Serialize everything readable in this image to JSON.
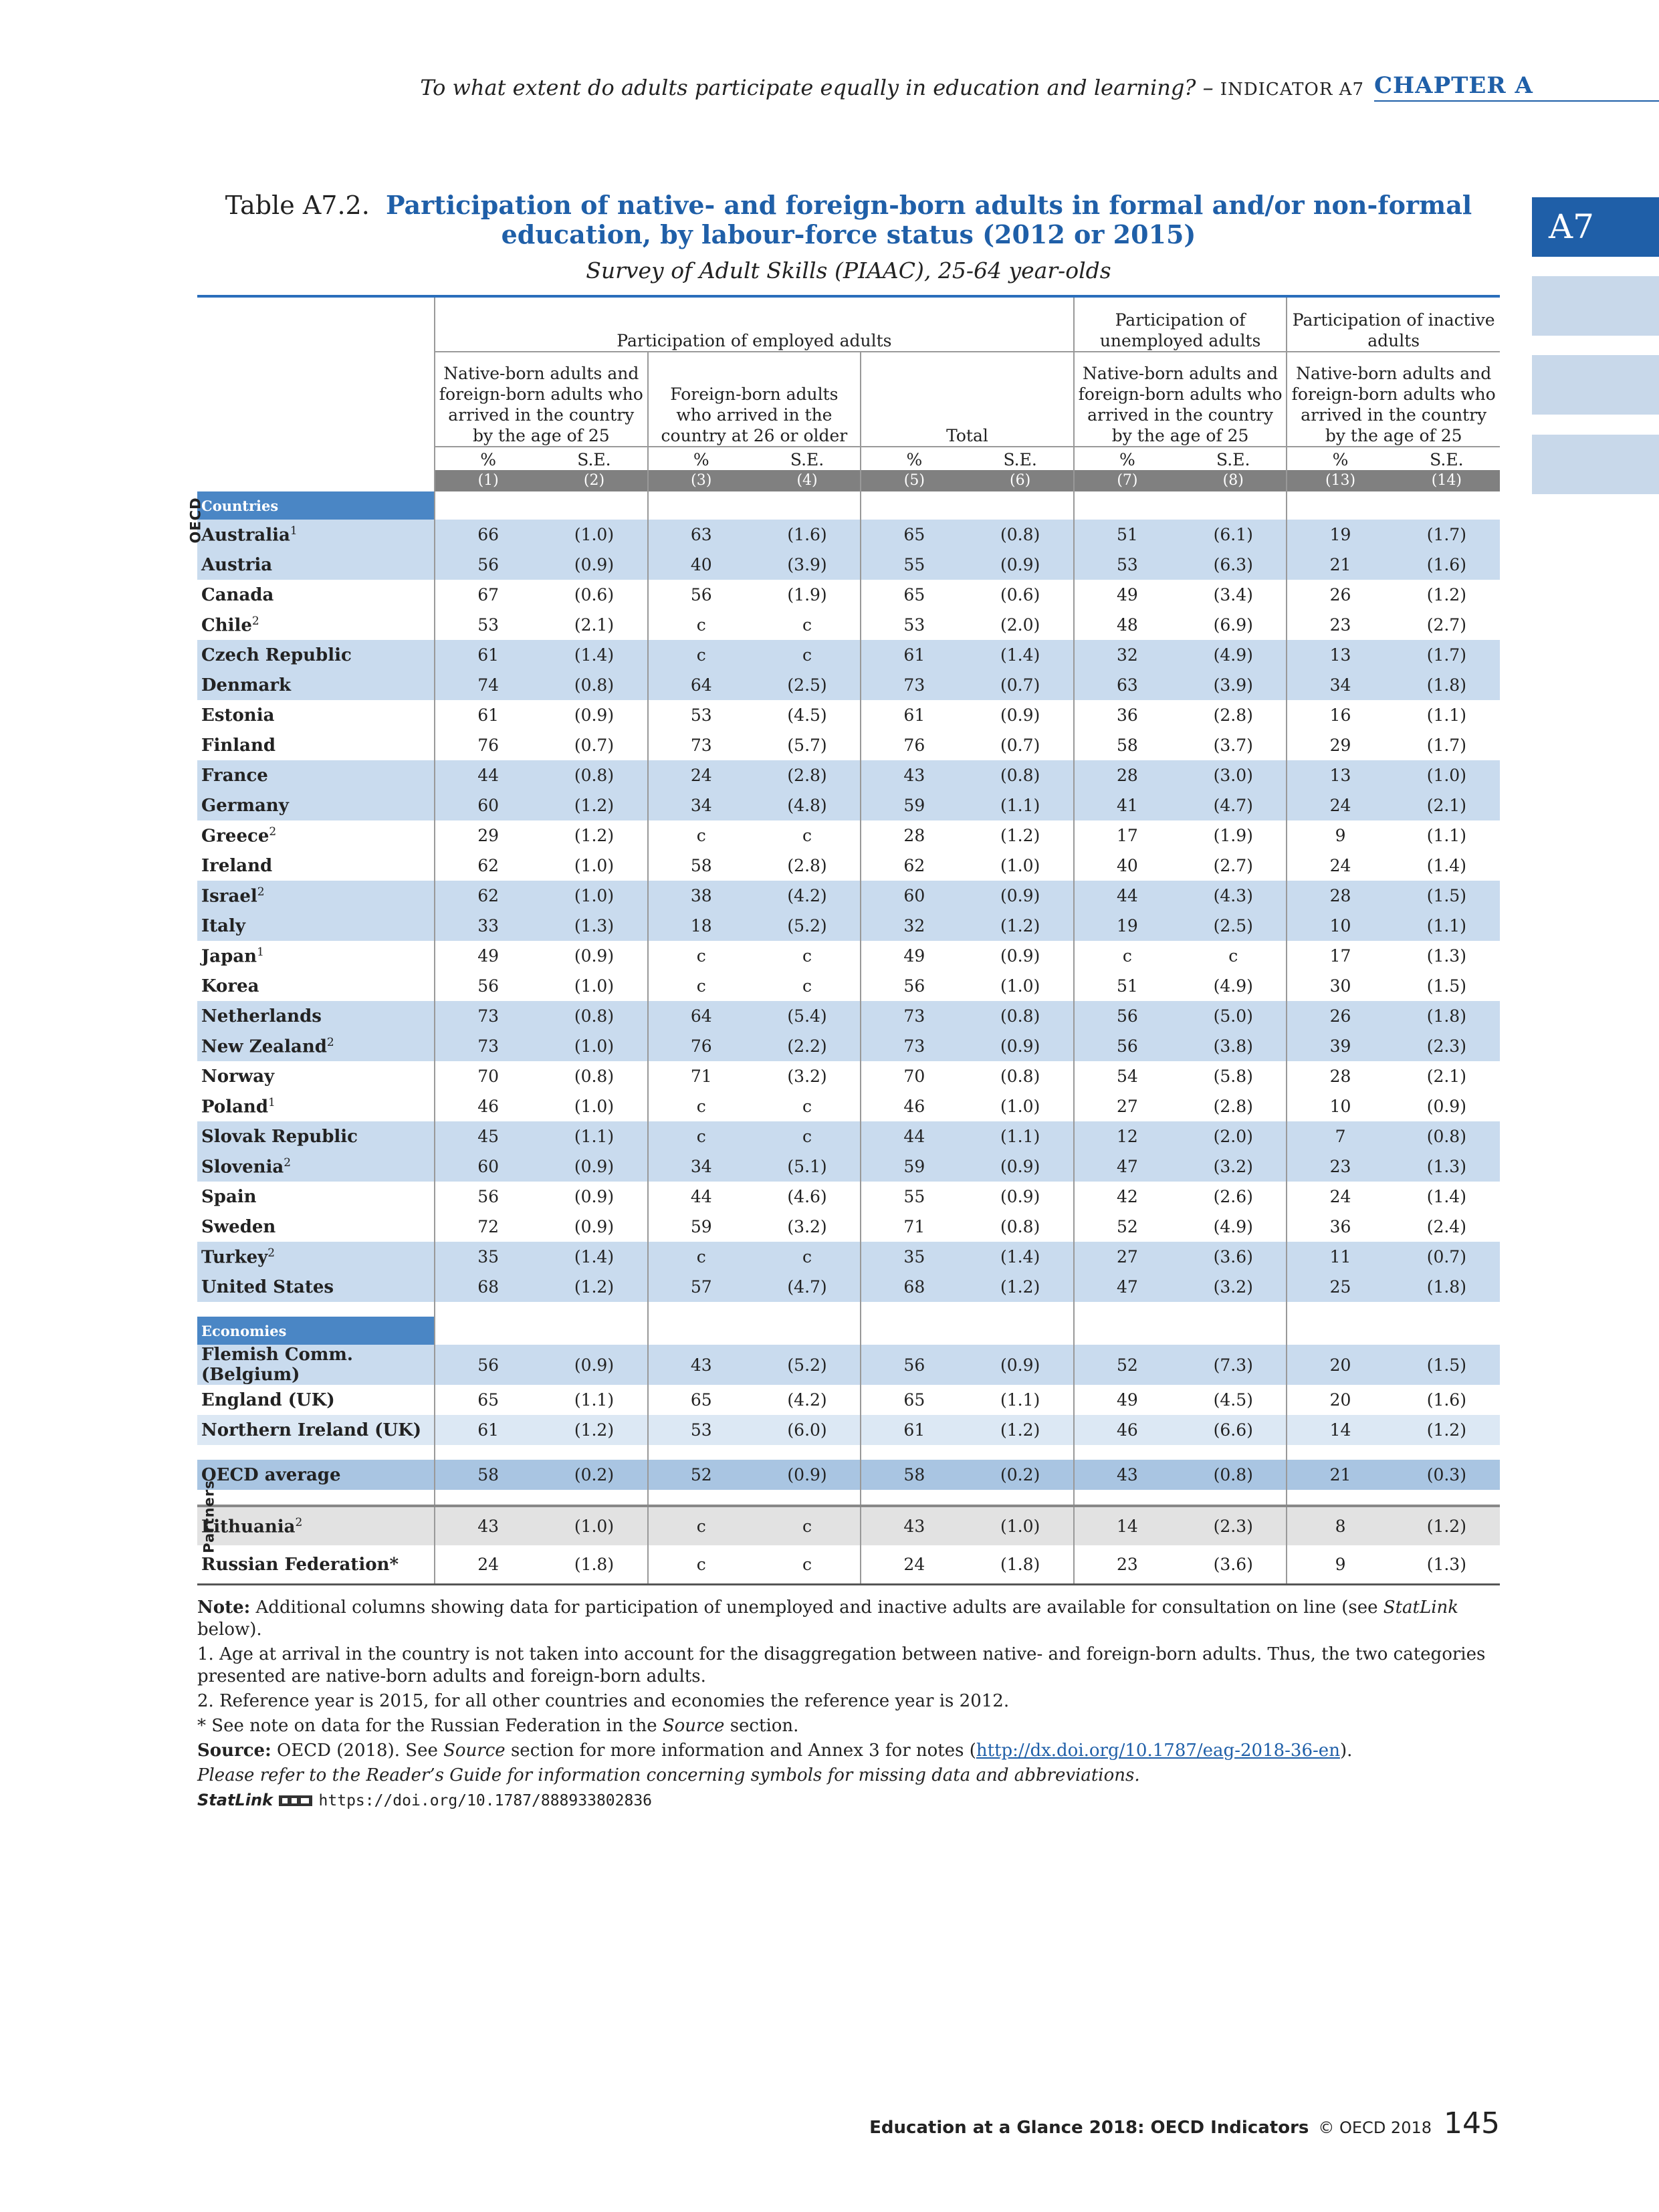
{
  "header": {
    "running_title": "To what extent do adults participate equally in education and learning? –",
    "indicator": "INDICATOR A7",
    "chapter": "CHAPTER A",
    "tab": "A7"
  },
  "title": {
    "label": "Table A7.2.",
    "text": "Participation of native- and foreign-born adults in formal and/or non-formal education, by labour-force status (2012 or 2015)",
    "subtitle": "Survey of Adult Skills (PIAAC), 25-64 year-olds"
  },
  "table": {
    "group_headers": [
      "Participation of employed adults",
      "Participation of unemployed adults",
      "Participation of inactive adults"
    ],
    "sub_headers": [
      "Native-born adults and foreign-born adults who arrived in the country by the age of 25",
      "Foreign-born adults who arrived in the country at 26 or older",
      "Total",
      "Native-born adults and foreign-born adults who arrived in the country by the age of 25",
      "Native-born adults and foreign-born adults who arrived in the country by the age of 25"
    ],
    "stat_labels": [
      "%",
      "S.E."
    ],
    "column_numbers": [
      "(1)",
      "(2)",
      "(3)",
      "(4)",
      "(5)",
      "(6)",
      "(7)",
      "(8)",
      "(13)",
      "(14)"
    ],
    "side_labels": [
      "OECD",
      "Partners"
    ],
    "sections": [
      {
        "title": "Countries",
        "rows": [
          {
            "name": "Australia",
            "sup": "1",
            "cells": [
              66,
              "(1.0)",
              63,
              "(1.6)",
              65,
              "(0.8)",
              51,
              "(6.1)",
              19,
              "(1.7)"
            ]
          },
          {
            "name": "Austria",
            "cells": [
              56,
              "(0.9)",
              40,
              "(3.9)",
              55,
              "(0.9)",
              53,
              "(6.3)",
              21,
              "(1.6)"
            ]
          },
          {
            "name": "Canada",
            "cells": [
              67,
              "(0.6)",
              56,
              "(1.9)",
              65,
              "(0.6)",
              49,
              "(3.4)",
              26,
              "(1.2)"
            ]
          },
          {
            "name": "Chile",
            "sup": "2",
            "cells": [
              53,
              "(2.1)",
              "c",
              "c",
              53,
              "(2.0)",
              48,
              "(6.9)",
              23,
              "(2.7)"
            ]
          },
          {
            "name": "Czech Republic",
            "cells": [
              61,
              "(1.4)",
              "c",
              "c",
              61,
              "(1.4)",
              32,
              "(4.9)",
              13,
              "(1.7)"
            ]
          },
          {
            "name": "Denmark",
            "cells": [
              74,
              "(0.8)",
              64,
              "(2.5)",
              73,
              "(0.7)",
              63,
              "(3.9)",
              34,
              "(1.8)"
            ]
          },
          {
            "name": "Estonia",
            "cells": [
              61,
              "(0.9)",
              53,
              "(4.5)",
              61,
              "(0.9)",
              36,
              "(2.8)",
              16,
              "(1.1)"
            ]
          },
          {
            "name": "Finland",
            "cells": [
              76,
              "(0.7)",
              73,
              "(5.7)",
              76,
              "(0.7)",
              58,
              "(3.7)",
              29,
              "(1.7)"
            ]
          },
          {
            "name": "France",
            "cells": [
              44,
              "(0.8)",
              24,
              "(2.8)",
              43,
              "(0.8)",
              28,
              "(3.0)",
              13,
              "(1.0)"
            ]
          },
          {
            "name": "Germany",
            "cells": [
              60,
              "(1.2)",
              34,
              "(4.8)",
              59,
              "(1.1)",
              41,
              "(4.7)",
              24,
              "(2.1)"
            ]
          },
          {
            "name": "Greece",
            "sup": "2",
            "cells": [
              29,
              "(1.2)",
              "c",
              "c",
              28,
              "(1.2)",
              17,
              "(1.9)",
              9,
              "(1.1)"
            ]
          },
          {
            "name": "Ireland",
            "cells": [
              62,
              "(1.0)",
              58,
              "(2.8)",
              62,
              "(1.0)",
              40,
              "(2.7)",
              24,
              "(1.4)"
            ]
          },
          {
            "name": "Israel",
            "sup": "2",
            "cells": [
              62,
              "(1.0)",
              38,
              "(4.2)",
              60,
              "(0.9)",
              44,
              "(4.3)",
              28,
              "(1.5)"
            ]
          },
          {
            "name": "Italy",
            "cells": [
              33,
              "(1.3)",
              18,
              "(5.2)",
              32,
              "(1.2)",
              19,
              "(2.5)",
              10,
              "(1.1)"
            ]
          },
          {
            "name": "Japan",
            "sup": "1",
            "cells": [
              49,
              "(0.9)",
              "c",
              "c",
              49,
              "(0.9)",
              "c",
              "c",
              17,
              "(1.3)"
            ]
          },
          {
            "name": "Korea",
            "cells": [
              56,
              "(1.0)",
              "c",
              "c",
              56,
              "(1.0)",
              51,
              "(4.9)",
              30,
              "(1.5)"
            ]
          },
          {
            "name": "Netherlands",
            "cells": [
              73,
              "(0.8)",
              64,
              "(5.4)",
              73,
              "(0.8)",
              56,
              "(5.0)",
              26,
              "(1.8)"
            ]
          },
          {
            "name": "New Zealand",
            "sup": "2",
            "cells": [
              73,
              "(1.0)",
              76,
              "(2.2)",
              73,
              "(0.9)",
              56,
              "(3.8)",
              39,
              "(2.3)"
            ]
          },
          {
            "name": "Norway",
            "cells": [
              70,
              "(0.8)",
              71,
              "(3.2)",
              70,
              "(0.8)",
              54,
              "(5.8)",
              28,
              "(2.1)"
            ]
          },
          {
            "name": "Poland",
            "sup": "1",
            "cells": [
              46,
              "(1.0)",
              "c",
              "c",
              46,
              "(1.0)",
              27,
              "(2.8)",
              10,
              "(0.9)"
            ]
          },
          {
            "name": "Slovak Republic",
            "cells": [
              45,
              "(1.1)",
              "c",
              "c",
              44,
              "(1.1)",
              12,
              "(2.0)",
              7,
              "(0.8)"
            ]
          },
          {
            "name": "Slovenia",
            "sup": "2",
            "cells": [
              60,
              "(0.9)",
              34,
              "(5.1)",
              59,
              "(0.9)",
              47,
              "(3.2)",
              23,
              "(1.3)"
            ]
          },
          {
            "name": "Spain",
            "cells": [
              56,
              "(0.9)",
              44,
              "(4.6)",
              55,
              "(0.9)",
              42,
              "(2.6)",
              24,
              "(1.4)"
            ]
          },
          {
            "name": "Sweden",
            "cells": [
              72,
              "(0.9)",
              59,
              "(3.2)",
              71,
              "(0.8)",
              52,
              "(4.9)",
              36,
              "(2.4)"
            ]
          },
          {
            "name": "Turkey",
            "sup": "2",
            "cells": [
              35,
              "(1.4)",
              "c",
              "c",
              35,
              "(1.4)",
              27,
              "(3.6)",
              11,
              "(0.7)"
            ]
          },
          {
            "name": "United States",
            "cells": [
              68,
              "(1.2)",
              57,
              "(4.7)",
              68,
              "(1.2)",
              47,
              "(3.2)",
              25,
              "(1.8)"
            ]
          }
        ]
      },
      {
        "title": "Economies",
        "rows": [
          {
            "name": "Flemish Comm. (Belgium)",
            "cells": [
              56,
              "(0.9)",
              43,
              "(5.2)",
              56,
              "(0.9)",
              52,
              "(7.3)",
              20,
              "(1.5)"
            ]
          },
          {
            "name": "England (UK)",
            "cells": [
              65,
              "(1.1)",
              65,
              "(4.2)",
              65,
              "(1.1)",
              49,
              "(4.5)",
              20,
              "(1.6)"
            ]
          },
          {
            "name": "Northern Ireland (UK)",
            "cells": [
              61,
              "(1.2)",
              53,
              "(6.0)",
              61,
              "(1.2)",
              46,
              "(6.6)",
              14,
              "(1.2)"
            ]
          }
        ]
      },
      {
        "rows": [
          {
            "name": "OECD average",
            "cells": [
              58,
              "(0.2)",
              52,
              "(0.9)",
              58,
              "(0.2)",
              43,
              "(0.8)",
              21,
              "(0.3)"
            ]
          }
        ]
      },
      {
        "rows": [
          {
            "name": "Lithuania",
            "sup": "2",
            "cells": [
              43,
              "(1.0)",
              "c",
              "c",
              43,
              "(1.0)",
              14,
              "(2.3)",
              8,
              "(1.2)"
            ]
          },
          {
            "name": "Russian Federation*",
            "cells": [
              24,
              "(1.8)",
              "c",
              "c",
              24,
              "(1.8)",
              23,
              "(3.6)",
              9,
              "(1.3)"
            ]
          }
        ]
      }
    ]
  },
  "notes": [
    [
      "Note:",
      " Additional columns showing data for participation of unemployed and inactive adults are available for consultation on line (see ",
      "StatLink",
      " below)."
    ],
    [
      "1. Age at arrival in the country is not taken into account for the disaggregation between native- and foreign-born adults. Thus, the two categories presented are native-born adults and foreign-born adults."
    ],
    [
      "2. Reference year is 2015, for all other countries and economies the reference year is 2012."
    ],
    [
      "* See note on data for the Russian Federation in the ",
      "Source",
      " section."
    ],
    [
      "Source:",
      " OECD (2018). See ",
      "Source",
      " section for more information and Annex 3 for notes (",
      "http://dx.doi.org/10.1787/eag-2018-36-en",
      ")."
    ],
    [
      "Please refer to the Reader’s Guide for information concerning symbols for missing data and abbreviations."
    ],
    [
      "StatLink",
      "https://doi.org/10.1787/888933802836"
    ]
  ],
  "footer": {
    "publication": "Education at a Glance 2018: OECD Indicators",
    "copyright": "© OECD 2018",
    "page": "145"
  }
}
